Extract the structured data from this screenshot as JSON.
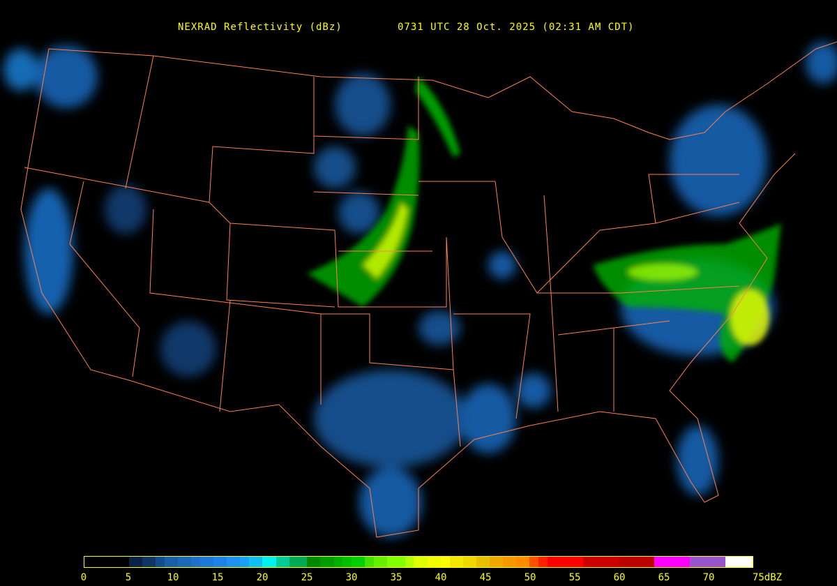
{
  "header": {
    "product": "NEXRAD Reflectivity (dBz)",
    "time": "0731 UTC 28 Oct. 2025 (02:31 AM CDT)"
  },
  "colorbar": {
    "min": 0,
    "max": 75,
    "unit": "dBZ",
    "ticks": [
      "0",
      "5",
      "10",
      "15",
      "20",
      "25",
      "30",
      "35",
      "40",
      "45",
      "50",
      "55",
      "60",
      "65",
      "70",
      "75dBZ"
    ],
    "tick_values": [
      0,
      5,
      10,
      15,
      20,
      25,
      30,
      35,
      40,
      45,
      50,
      55,
      60,
      65,
      70,
      75
    ],
    "bins": [
      [
        0,
        "#000000"
      ],
      [
        5,
        "#0a2244"
      ],
      [
        6.5,
        "#0e3566"
      ],
      [
        8,
        "#134c8c"
      ],
      [
        9,
        "#1a5ea8"
      ],
      [
        10.5,
        "#1c68b8"
      ],
      [
        12,
        "#1e70c8"
      ],
      [
        13,
        "#1e78d8"
      ],
      [
        14.5,
        "#1f82e8"
      ],
      [
        16,
        "#1e90f0"
      ],
      [
        17.5,
        "#1aa0f5"
      ],
      [
        18.5,
        "#10c0f0"
      ],
      [
        20,
        "#00f0f0"
      ],
      [
        21.5,
        "#00cc99"
      ],
      [
        23,
        "#00aa55"
      ],
      [
        25,
        "#008800"
      ],
      [
        26.5,
        "#009c00"
      ],
      [
        28,
        "#00b000"
      ],
      [
        29,
        "#00c000"
      ],
      [
        30,
        "#00d000"
      ],
      [
        31.5,
        "#44e000"
      ],
      [
        32.5,
        "#66f000"
      ],
      [
        34,
        "#80ff00"
      ],
      [
        36,
        "#b0ff00"
      ],
      [
        37,
        "#ddff00"
      ],
      [
        38.5,
        "#f0ff00"
      ],
      [
        40,
        "#ffff00"
      ],
      [
        41,
        "#f5e800"
      ],
      [
        42.5,
        "#eed800"
      ],
      [
        44,
        "#e8c000"
      ],
      [
        45.5,
        "#f0a800"
      ],
      [
        47,
        "#f59800"
      ],
      [
        48.5,
        "#ff8c00"
      ],
      [
        50,
        "#ff5000"
      ],
      [
        51,
        "#ff2000"
      ],
      [
        52,
        "#ff0000"
      ],
      [
        56,
        "#cc0000"
      ],
      [
        60,
        "#bb0000"
      ],
      [
        64,
        "#ff00ff"
      ],
      [
        68,
        "#9955cc"
      ],
      [
        72,
        "#ffffff"
      ]
    ]
  },
  "colors": {
    "text": "#ffff00",
    "borders": "#ff7f50",
    "background": "#000000"
  }
}
